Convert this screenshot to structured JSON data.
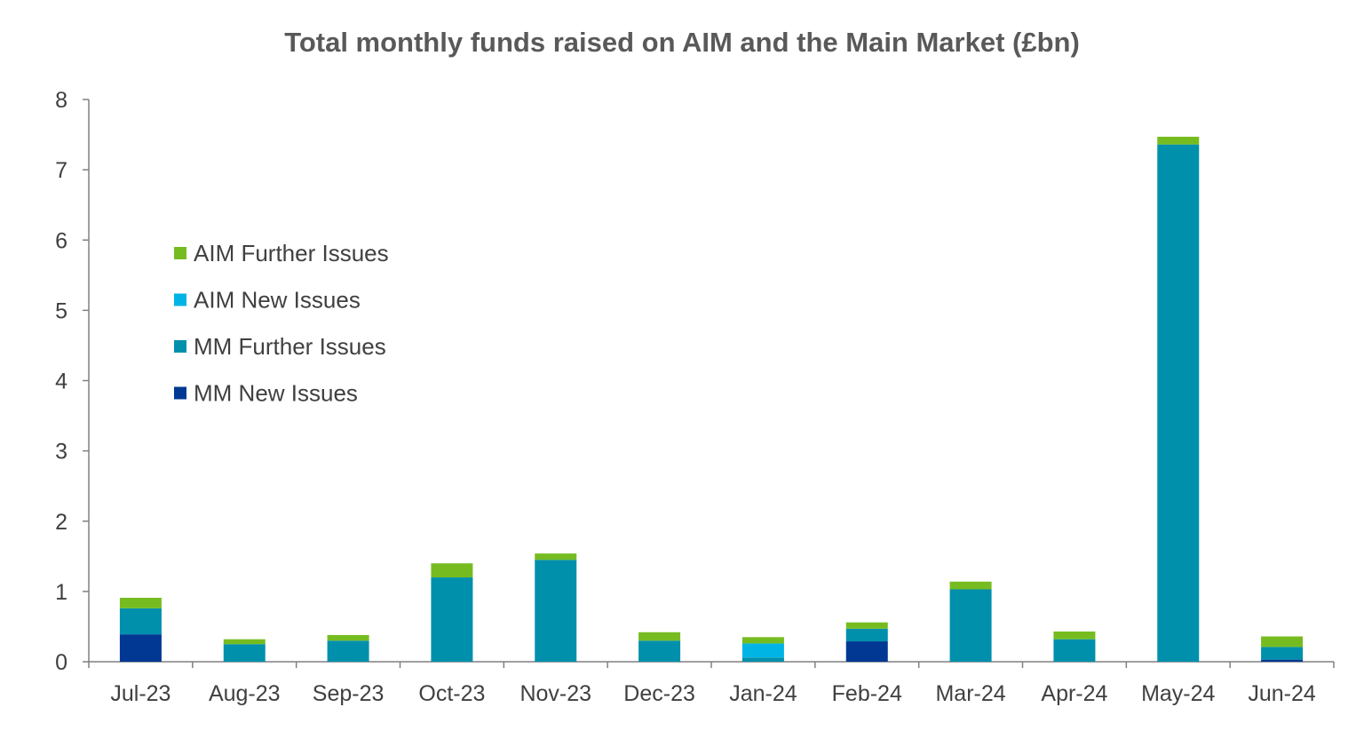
{
  "chart_data": {
    "type": "bar",
    "stacked": true,
    "title": "Total monthly funds raised on AIM and the Main Market (£bn)",
    "xlabel": "",
    "ylabel": "",
    "ylim": [
      0,
      8
    ],
    "yticks": [
      "0",
      "1",
      "2",
      "3",
      "4",
      "5",
      "6",
      "7",
      "8"
    ],
    "grid": false,
    "legend_position": "upper-left",
    "categories": [
      "Jul-23",
      "Aug-23",
      "Sep-23",
      "Oct-23",
      "Nov-23",
      "Dec-23",
      "Jan-24",
      "Feb-24",
      "Mar-24",
      "Apr-24",
      "May-24",
      "Jun-24"
    ],
    "series": [
      {
        "name": "MM New Issues",
        "color": "#003893",
        "values": [
          0.39,
          0.0,
          0.0,
          0.0,
          0.0,
          0.0,
          0.0,
          0.29,
          0.0,
          0.0,
          0.0,
          0.03
        ]
      },
      {
        "name": "MM Further Issues",
        "color": "#0090AC",
        "values": [
          0.37,
          0.25,
          0.3,
          1.2,
          1.45,
          0.3,
          0.06,
          0.18,
          1.03,
          0.32,
          7.36,
          0.18
        ]
      },
      {
        "name": "AIM New Issues",
        "color": "#00B5E6",
        "values": [
          0.0,
          0.0,
          0.0,
          0.0,
          0.0,
          0.0,
          0.2,
          0.0,
          0.0,
          0.0,
          0.0,
          0.0
        ]
      },
      {
        "name": "AIM Further Issues",
        "color": "#76BC21",
        "values": [
          0.15,
          0.07,
          0.08,
          0.2,
          0.09,
          0.12,
          0.09,
          0.09,
          0.11,
          0.11,
          0.11,
          0.15
        ]
      }
    ],
    "legend_order": [
      "AIM Further Issues",
      "AIM New Issues",
      "MM Further Issues",
      "MM New Issues"
    ]
  }
}
